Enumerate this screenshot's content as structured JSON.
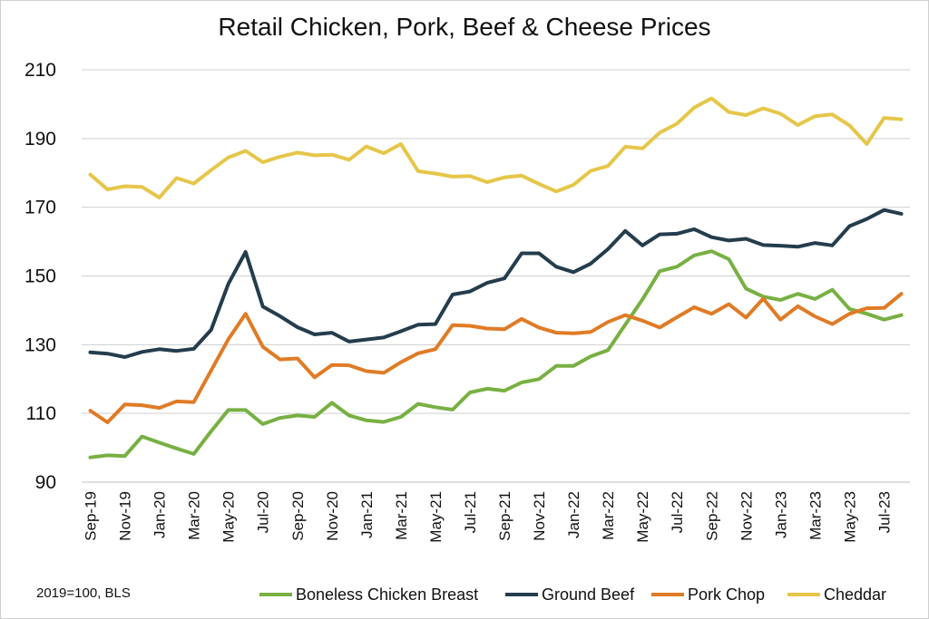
{
  "chart_data": {
    "type": "line",
    "title": "Retail Chicken, Pork, Beef & Cheese Prices",
    "source_note": "2019=100, BLS",
    "ylim": [
      90,
      210
    ],
    "yticks": [
      90,
      110,
      130,
      150,
      170,
      190,
      210
    ],
    "grid": "horizontal",
    "legend_position": "bottom",
    "categories": [
      "Sep-19",
      "Oct-19",
      "Nov-19",
      "Dec-19",
      "Jan-20",
      "Feb-20",
      "Mar-20",
      "Apr-20",
      "May-20",
      "Jun-20",
      "Jul-20",
      "Aug-20",
      "Sep-20",
      "Oct-20",
      "Nov-20",
      "Dec-20",
      "Jan-21",
      "Feb-21",
      "Mar-21",
      "Apr-21",
      "May-21",
      "Jun-21",
      "Jul-21",
      "Aug-21",
      "Sep-21",
      "Oct-21",
      "Nov-21",
      "Dec-21",
      "Jan-22",
      "Feb-22",
      "Mar-22",
      "Apr-22",
      "May-22",
      "Jun-22",
      "Jul-22",
      "Aug-22",
      "Sep-22",
      "Oct-22",
      "Nov-22",
      "Dec-22",
      "Jan-23",
      "Feb-23",
      "Mar-23",
      "Apr-23",
      "May-23",
      "Jun-23",
      "Jul-23",
      "Aug-23"
    ],
    "tick_labels": [
      "Sep-19",
      "Nov-19",
      "Jan-20",
      "Mar-20",
      "May-20",
      "Jul-20",
      "Sep-20",
      "Nov-20",
      "Jan-21",
      "Mar-21",
      "May-21",
      "Jul-21",
      "Sep-21",
      "Nov-21",
      "Jan-22",
      "Mar-22",
      "May-22",
      "Jul-22",
      "Sep-22",
      "Nov-22",
      "Jan-23",
      "Mar-23",
      "May-23",
      "Jul-23"
    ],
    "series": [
      {
        "name": "Boneless Chicken Breast",
        "color": "#78b043",
        "values": [
          97.2,
          97.8,
          97.6,
          103.3,
          101.5,
          99.8,
          98.2,
          104.8,
          111.0,
          111.0,
          106.9,
          108.7,
          109.4,
          109.0,
          113.1,
          109.4,
          108.0,
          107.5,
          109.0,
          112.8,
          111.8,
          111.1,
          116.1,
          117.2,
          116.6,
          119.0,
          120.0,
          123.8,
          123.8,
          126.6,
          128.4,
          135.8,
          143.2,
          151.4,
          152.7,
          156.0,
          157.2,
          154.9,
          146.3,
          144.0,
          143.0,
          144.8,
          143.3,
          146.0,
          140.4,
          139.0,
          137.3,
          138.6
        ]
      },
      {
        "name": "Ground Beef",
        "color": "#243d4d",
        "values": [
          127.8,
          127.4,
          126.4,
          127.9,
          128.7,
          128.2,
          128.8,
          134.3,
          147.7,
          157.0,
          141.1,
          138.3,
          135.1,
          133.0,
          133.5,
          130.9,
          131.5,
          132.1,
          133.9,
          135.8,
          136.0,
          144.6,
          145.5,
          148.0,
          149.3,
          156.6,
          156.6,
          152.7,
          151.1,
          153.6,
          157.8,
          163.1,
          158.9,
          162.1,
          162.3,
          163.6,
          161.3,
          160.3,
          160.8,
          159.0,
          158.8,
          158.5,
          159.6,
          158.9,
          164.5,
          166.6,
          169.2,
          168.1
        ]
      },
      {
        "name": "Pork Chop",
        "color": "#e07b26",
        "values": [
          110.8,
          107.4,
          112.6,
          112.4,
          111.6,
          113.5,
          113.3,
          122.5,
          131.6,
          139.0,
          129.4,
          125.7,
          126.0,
          120.5,
          124.1,
          124.0,
          122.3,
          121.8,
          124.9,
          127.5,
          128.7,
          135.7,
          135.5,
          134.7,
          134.5,
          137.5,
          135.0,
          133.5,
          133.3,
          133.7,
          136.6,
          138.6,
          137.0,
          135.0,
          138.0,
          140.9,
          139.0,
          141.8,
          137.9,
          143.4,
          137.3,
          141.2,
          138.2,
          136.0,
          139.0,
          140.6,
          140.7,
          144.8
        ]
      },
      {
        "name": "Cheddar",
        "color": "#e6c649",
        "values": [
          179.5,
          175.2,
          176.1,
          175.9,
          172.8,
          178.5,
          176.9,
          180.8,
          184.5,
          186.4,
          183.1,
          184.7,
          185.9,
          185.1,
          185.3,
          183.8,
          187.7,
          185.7,
          188.4,
          180.5,
          179.8,
          178.9,
          179.1,
          177.3,
          178.7,
          179.2,
          176.8,
          174.6,
          176.5,
          180.6,
          182.0,
          187.6,
          187.1,
          191.7,
          194.3,
          199.0,
          201.7,
          197.7,
          196.8,
          198.8,
          197.2,
          193.9,
          196.5,
          197.0,
          193.8,
          188.4,
          196.0,
          195.6
        ]
      }
    ]
  }
}
